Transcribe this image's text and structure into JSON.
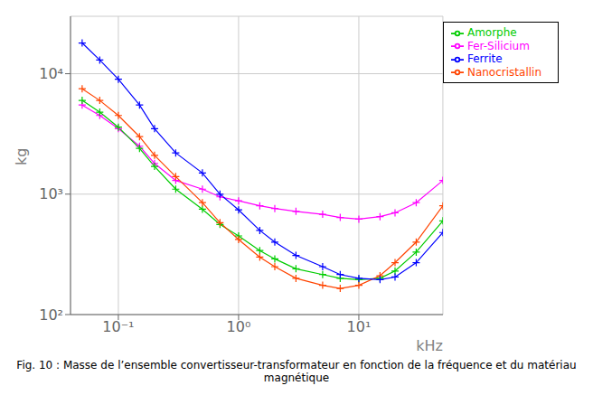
{
  "chart_data": {
    "type": "line",
    "log": true,
    "grid": true,
    "legend": "upper right",
    "marker": "plus",
    "xlabel": "kHz",
    "ylabel": "kg",
    "annotations": [
      "Fig. 10 : Masse de l’ensemble convertisseur-transformateur en fonction de la fréquence et du matériau magnétique"
    ],
    "xlim": [
      0.04,
      50
    ],
    "ylim": [
      100,
      30000
    ],
    "xticks": [
      {
        "value": 0.1,
        "label": "10⁻¹"
      },
      {
        "value": 1,
        "label": "10⁰"
      },
      {
        "value": 10,
        "label": "10¹"
      }
    ],
    "yticks": [
      {
        "value": 100,
        "label": "10²"
      },
      {
        "value": 1000,
        "label": "10³"
      },
      {
        "value": 10000,
        "label": "10⁴"
      }
    ],
    "x": [
      0.05,
      0.07,
      0.1,
      0.15,
      0.2,
      0.3,
      0.5,
      0.7,
      1.0,
      1.5,
      2.0,
      3.0,
      5.0,
      7.0,
      10.0,
      15.0,
      20.0,
      30.0,
      50.0
    ],
    "series": [
      {
        "name": "Fer-Silicium",
        "color": "#ff00ff",
        "values": [
          5500,
          4500,
          3500,
          2500,
          1800,
          1300,
          1100,
          950,
          880,
          800,
          760,
          720,
          680,
          640,
          620,
          650,
          700,
          850,
          1300
        ]
      },
      {
        "name": "Amorphe",
        "color": "#00cc00",
        "values": [
          6000,
          4800,
          3600,
          2400,
          1700,
          1100,
          750,
          560,
          450,
          340,
          290,
          240,
          215,
          200,
          195,
          200,
          230,
          330,
          600
        ]
      },
      {
        "name": "Nanocristallin",
        "color": "#ff4400",
        "values": [
          7500,
          6000,
          4500,
          3000,
          2100,
          1400,
          850,
          580,
          420,
          300,
          250,
          200,
          175,
          165,
          175,
          210,
          270,
          400,
          800
        ]
      },
      {
        "name": "Ferrite",
        "color": "#0000ff",
        "values": [
          18000,
          13000,
          9000,
          5500,
          3500,
          2200,
          1500,
          1000,
          740,
          500,
          400,
          310,
          250,
          215,
          200,
          195,
          205,
          270,
          480
        ]
      }
    ]
  }
}
